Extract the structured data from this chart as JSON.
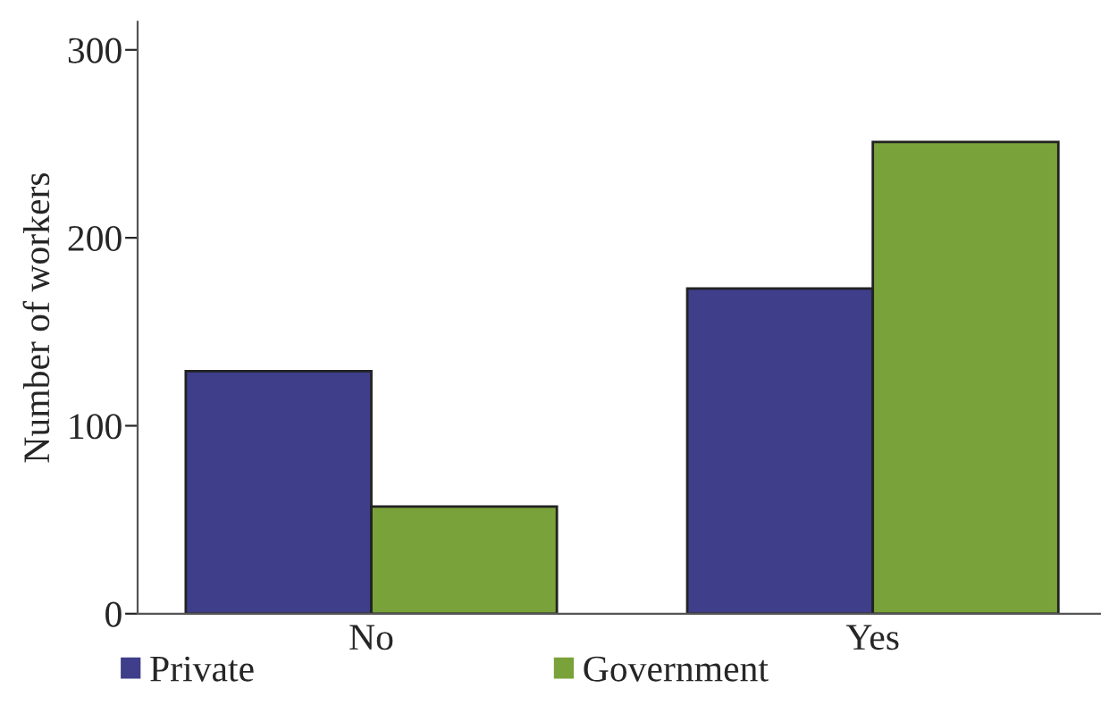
{
  "chart_data": {
    "type": "bar",
    "ylabel": "Number of workers",
    "categories": [
      "No",
      "Yes"
    ],
    "series": [
      {
        "name": "Private",
        "color": "#3e3e8a",
        "values": [
          129,
          173
        ]
      },
      {
        "name": "Government",
        "color": "#7aa23a",
        "values": [
          57,
          251
        ]
      }
    ],
    "ylim": [
      0,
      315
    ],
    "yticks": [
      0,
      100,
      200,
      300
    ],
    "grid": false,
    "legend": "bottom left"
  }
}
